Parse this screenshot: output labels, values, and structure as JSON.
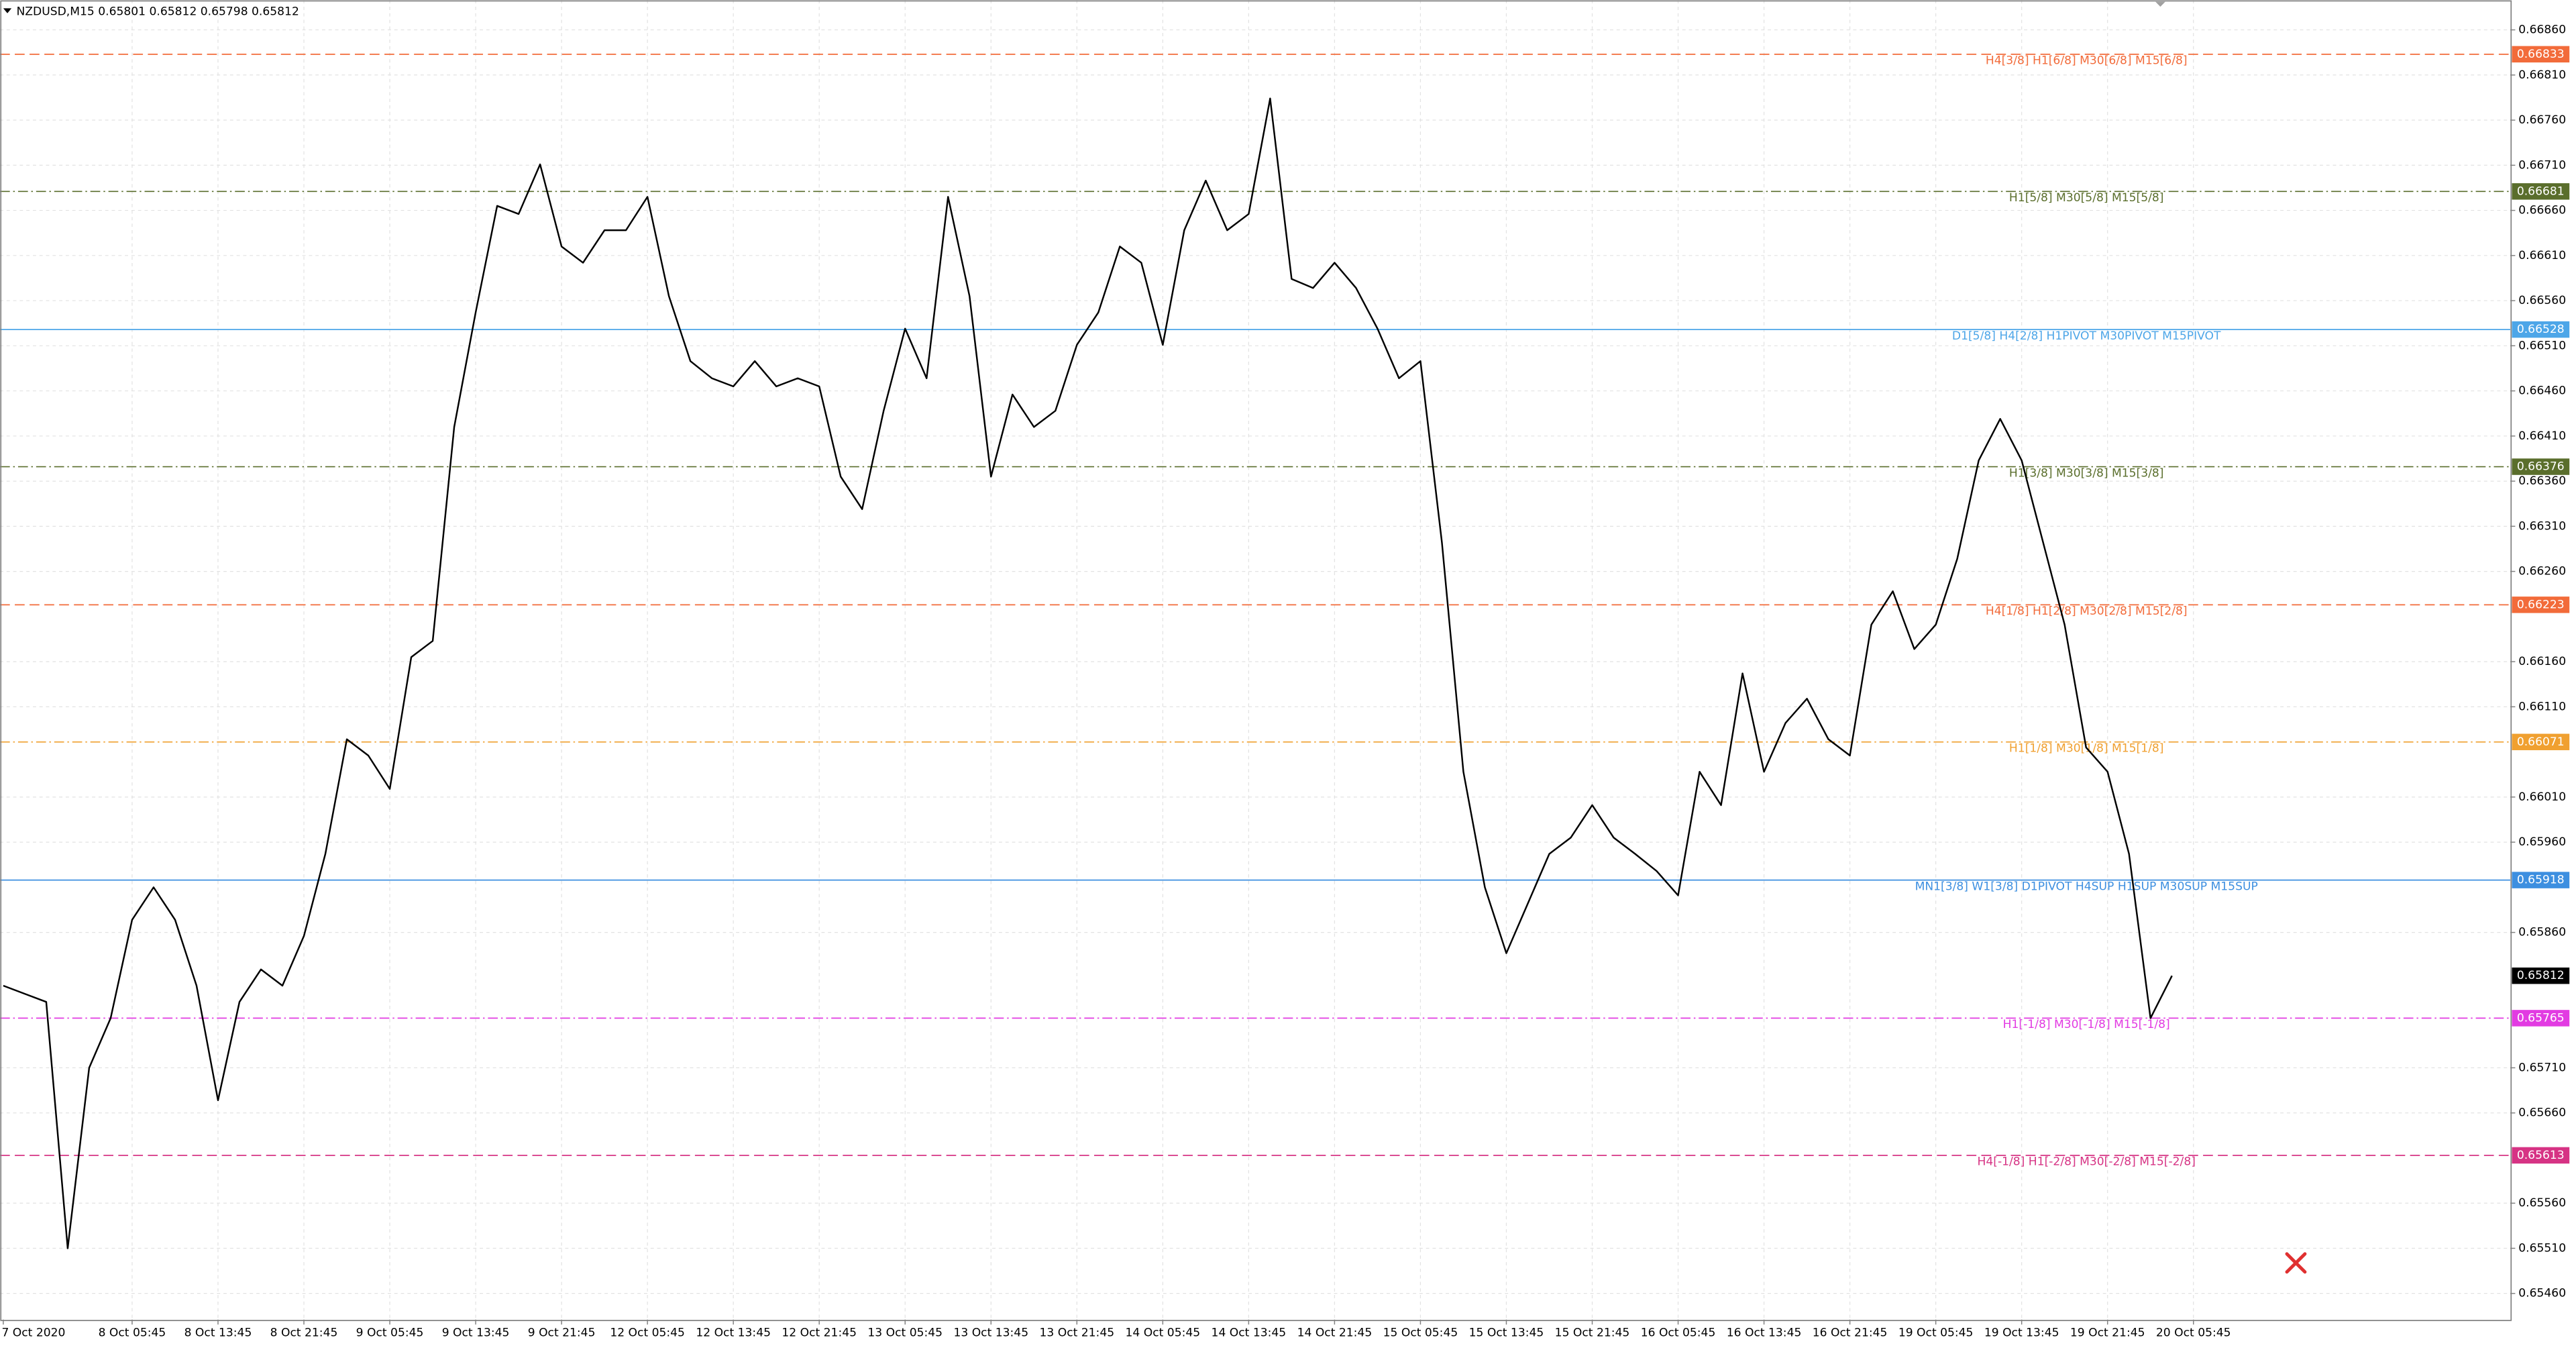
{
  "chart_data": {
    "type": "line",
    "title": "NZDUSD,M15  0.65801 0.65812 0.65798 0.65812",
    "categories": [
      "7 Oct 2020",
      null,
      null,
      null,
      null,
      null,
      "8 Oct 05:45",
      null,
      null,
      null,
      "8 Oct 13:45",
      null,
      null,
      null,
      "8 Oct 21:45",
      null,
      null,
      null,
      "9 Oct 05:45",
      null,
      null,
      null,
      "9 Oct 13:45",
      null,
      null,
      null,
      "9 Oct 21:45",
      null,
      null,
      null,
      "12 Oct 05:45",
      null,
      null,
      null,
      "12 Oct 13:45",
      null,
      null,
      null,
      "12 Oct 21:45",
      null,
      null,
      null,
      "13 Oct 05:45",
      null,
      null,
      null,
      "13 Oct 13:45",
      null,
      null,
      null,
      "13 Oct 21:45",
      null,
      null,
      null,
      "14 Oct 05:45",
      null,
      null,
      null,
      "14 Oct 13:45",
      null,
      null,
      null,
      "14 Oct 21:45",
      null,
      null,
      null,
      "15 Oct 05:45",
      null,
      null,
      null,
      "15 Oct 13:45",
      null,
      null,
      null,
      "15 Oct 21:45",
      null,
      null,
      null,
      "16 Oct 05:45",
      null,
      null,
      null,
      "16 Oct 13:45",
      null,
      null,
      null,
      "16 Oct 21:45",
      null,
      null,
      null,
      "19 Oct 05:45",
      null,
      null,
      null,
      "19 Oct 13:45",
      null,
      null,
      null,
      "19 Oct 21:45",
      null,
      null,
      null,
      "20 Oct 05:45"
    ],
    "values": [
      0.65801,
      0.65792,
      0.65783,
      0.6551,
      0.6571,
      0.65765,
      0.65874,
      0.6591,
      0.65874,
      0.65801,
      0.65674,
      0.65783,
      0.65819,
      0.65801,
      0.65856,
      0.65947,
      0.66074,
      0.66056,
      0.66019,
      0.66165,
      0.66183,
      0.6642,
      0.66547,
      0.66665,
      0.66656,
      0.66711,
      0.6662,
      0.66602,
      0.66638,
      0.66638,
      0.66675,
      0.66565,
      0.66493,
      0.66474,
      0.66465,
      0.66493,
      0.66465,
      0.66474,
      0.66465,
      0.66365,
      0.66329,
      0.66438,
      0.66529,
      0.66474,
      0.66675,
      0.66565,
      0.66365,
      0.66456,
      0.6642,
      0.66438,
      0.66511,
      0.66547,
      0.6662,
      0.66602,
      0.66511,
      0.66638,
      0.66693,
      0.66638,
      0.66656,
      0.66784,
      0.66584,
      0.66574,
      0.66602,
      0.66574,
      0.66529,
      0.66474,
      0.66493,
      0.66292,
      0.66038,
      0.6591,
      0.65837,
      0.65892,
      0.65947,
      0.65965,
      0.66001,
      0.65965,
      0.65947,
      0.65928,
      0.65901,
      0.66038,
      0.66001,
      0.66147,
      0.66038,
      0.66092,
      0.66119,
      0.66074,
      0.66056,
      0.66201,
      0.66238,
      0.66174,
      0.66201,
      0.66274,
      0.66383,
      0.66429,
      0.66383,
      0.66292,
      0.66201,
      0.66065,
      0.66038,
      0.65947,
      0.65765,
      0.65812,
      null
    ],
    "color": "#000000",
    "ylim": [
      0.65431,
      0.66893
    ],
    "yticks": [
      {
        "value": 0.6686,
        "label": "0.66860"
      },
      {
        "value": 0.6681,
        "label": "0.66810"
      },
      {
        "value": 0.6676,
        "label": "0.66760"
      },
      {
        "value": 0.6671,
        "label": "0.66710"
      },
      {
        "value": 0.6666,
        "label": "0.66660"
      },
      {
        "value": 0.6661,
        "label": "0.66610"
      },
      {
        "value": 0.6656,
        "label": "0.66560"
      },
      {
        "value": 0.6651,
        "label": "0.66510"
      },
      {
        "value": 0.6646,
        "label": "0.66460"
      },
      {
        "value": 0.6641,
        "label": "0.66410"
      },
      {
        "value": 0.6636,
        "label": "0.66360"
      },
      {
        "value": 0.6631,
        "label": "0.66310"
      },
      {
        "value": 0.6626,
        "label": "0.66260"
      },
      {
        "value": 0.6616,
        "label": "0.66160"
      },
      {
        "value": 0.6611,
        "label": "0.66110"
      },
      {
        "value": 0.6601,
        "label": "0.66010"
      },
      {
        "value": 0.6596,
        "label": "0.65960"
      },
      {
        "value": 0.6586,
        "label": "0.65860"
      },
      {
        "value": 0.6571,
        "label": "0.65710"
      },
      {
        "value": 0.6566,
        "label": "0.65660"
      },
      {
        "value": 0.6556,
        "label": "0.65560"
      },
      {
        "value": 0.6551,
        "label": "0.65510"
      },
      {
        "value": 0.6546,
        "label": "0.65460"
      }
    ],
    "grid": true,
    "levels": [
      {
        "value": 0.66833,
        "label": "H4[3/8] H1[6/8] M30[6/8] M15[6/8]",
        "color": "#f26b3a",
        "style": "dashed"
      },
      {
        "value": 0.66681,
        "label": "H1[5/8] M30[5/8] M15[5/8]",
        "color": "#5a6e2c",
        "style": "dashdot"
      },
      {
        "value": 0.66528,
        "label": "D1[5/8] H4[2/8] H1PIVOT M30PIVOT M15PIVOT",
        "color": "#4da6e8",
        "style": "solid"
      },
      {
        "value": 0.66376,
        "label": "H1[3/8] M30[3/8] M15[3/8]",
        "color": "#5a6e2c",
        "style": "dashdot"
      },
      {
        "value": 0.66223,
        "label": "H4[1/8] H1[2/8] M30[2/8] M15[2/8]",
        "color": "#f26b3a",
        "style": "dashed"
      },
      {
        "value": 0.66071,
        "label": "H1[1/8] M30[1/8] M15[1/8]",
        "color": "#f0a030",
        "style": "dashdot"
      },
      {
        "value": 0.65918,
        "label": "MN1[3/8] W1[3/8] D1PIVOT H4SUP H1SUP M30SUP M15SUP",
        "color": "#3d8fe0",
        "style": "solid"
      },
      {
        "value": 0.65765,
        "label": "H1[-1/8] M30[-1/8] M15[-1/8]",
        "color": "#e23be2",
        "style": "dashdot"
      },
      {
        "value": 0.65613,
        "label": "H4[-1/8] H1[-2/8] M30[-2/8] M15[-2/8]",
        "color": "#d63384",
        "style": "dashed"
      }
    ],
    "current_price": 0.65812
  }
}
